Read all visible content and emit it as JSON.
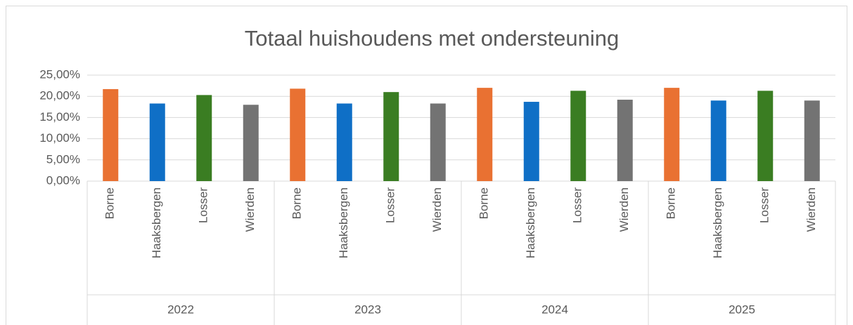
{
  "chart_data": {
    "type": "bar",
    "title": "Totaal huishoudens met ondersteuning",
    "groups": [
      "2022",
      "2023",
      "2024",
      "2025"
    ],
    "categories": [
      "Borne",
      "Haaksbergen",
      "Losser",
      "Wierden",
      "Borne",
      "Haaksbergen",
      "Losser",
      "Wierden",
      "Borne",
      "Haaksbergen",
      "Losser",
      "Wierden",
      "Borne",
      "Haaksbergen",
      "Losser",
      "Wierden"
    ],
    "values": [
      21.7,
      18.3,
      20.3,
      18.0,
      21.8,
      18.3,
      21.0,
      18.3,
      22.0,
      18.7,
      21.3,
      19.2,
      22.0,
      19.0,
      21.3,
      19.0
    ],
    "colors": [
      "#e97132",
      "#0f6fc6",
      "#3a7d22",
      "#737373",
      "#e97132",
      "#0f6fc6",
      "#3a7d22",
      "#737373",
      "#e97132",
      "#0f6fc6",
      "#3a7d22",
      "#737373",
      "#e97132",
      "#0f6fc6",
      "#3a7d22",
      "#737373"
    ],
    "ylim": [
      0,
      25
    ],
    "yticks": [
      {
        "value": 0,
        "label": "0,00%"
      },
      {
        "value": 5,
        "label": "5,00%"
      },
      {
        "value": 10,
        "label": "10,00%"
      },
      {
        "value": 15,
        "label": "15,00%"
      },
      {
        "value": 20,
        "label": "20,00%"
      },
      {
        "value": 25,
        "label": "25,00%"
      }
    ],
    "grid": true
  }
}
